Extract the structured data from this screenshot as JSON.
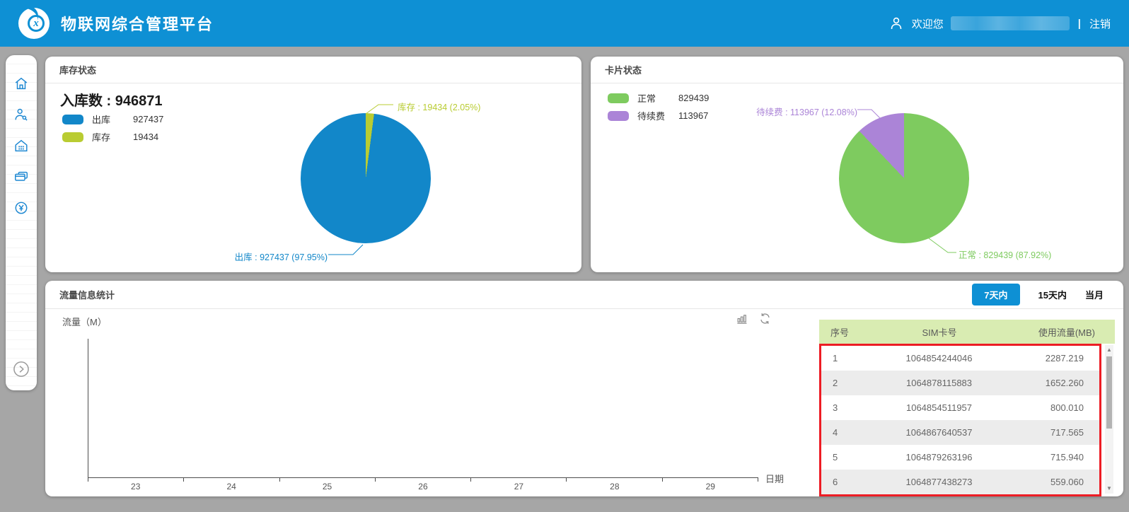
{
  "app": {
    "title": "物联网综合管理平台"
  },
  "topbar": {
    "welcome": "欢迎您",
    "divider": "|",
    "logout": "注销",
    "logo_glyph": "x"
  },
  "colors": {
    "accent": "#0e90d4",
    "sidebar_icon": "#1e88d2",
    "pie_out": "#1287c9",
    "pie_stock": "#b9cc32",
    "pie_normal": "#7ecb5f",
    "pie_renew": "#ab84d7",
    "table_header_bg": "#d9ecb2",
    "highlight_border": "#ed1c24"
  },
  "sidebar": {
    "icons": [
      "home-icon",
      "user-management-icon",
      "warehouse-icon",
      "card-management-icon",
      "billing-icon"
    ],
    "expand_icon": "chevron-right-icon"
  },
  "inventory": {
    "title": "库存状态",
    "total_label": "入库数 :",
    "total_value": "946871",
    "legend": [
      {
        "label": "出库",
        "value": "927437"
      },
      {
        "label": "库存",
        "value": "19434"
      }
    ],
    "callouts": {
      "stock": "库存 : 19434 (2.05%)",
      "out": "出库 : 927437 (97.95%)"
    }
  },
  "cards": {
    "title": "卡片状态",
    "legend": [
      {
        "label": "正常",
        "value": "829439"
      },
      {
        "label": "待续费",
        "value": "113967"
      }
    ],
    "callouts": {
      "renew": "待续费 : 113967 (12.08%)",
      "normal": "正常 : 829439 (87.92%)"
    }
  },
  "traffic": {
    "title": "流量信息统计",
    "tabs": [
      {
        "label": "7天内",
        "active": true
      },
      {
        "label": "15天内",
        "active": false
      },
      {
        "label": "当月",
        "active": false
      }
    ],
    "ylabel": "流量（M）",
    "xlabel": "日期",
    "xticks": [
      "23",
      "24",
      "25",
      "26",
      "27",
      "28",
      "29"
    ],
    "tool_icons": [
      "bar-chart-icon",
      "refresh-icon"
    ],
    "table": {
      "headers": [
        "序号",
        "SIM卡号",
        "使用流量(MB)"
      ],
      "rows": [
        [
          "1",
          "1064854244046",
          "2287.219"
        ],
        [
          "2",
          "1064878115883",
          "1652.260"
        ],
        [
          "3",
          "1064854511957",
          "800.010"
        ],
        [
          "4",
          "1064867640537",
          "717.565"
        ],
        [
          "5",
          "1064879263196",
          "715.940"
        ],
        [
          "6",
          "1064877438273",
          "559.060"
        ]
      ]
    }
  },
  "chart_data": [
    {
      "type": "pie",
      "title": "库存状态",
      "total_label": "入库数",
      "total_value": 946871,
      "series": [
        {
          "name": "出库",
          "value": 927437,
          "percent": "97.95%",
          "color": "#1287c9"
        },
        {
          "name": "库存",
          "value": 19434,
          "percent": "2.05%",
          "color": "#b9cc32"
        }
      ],
      "legend_position": "top-left"
    },
    {
      "type": "pie",
      "title": "卡片状态",
      "series": [
        {
          "name": "正常",
          "value": 829439,
          "percent": "87.92%",
          "color": "#7ecb5f"
        },
        {
          "name": "待续费",
          "value": 113967,
          "percent": "12.08%",
          "color": "#ab84d7"
        }
      ],
      "legend_position": "top-left"
    },
    {
      "type": "line",
      "title": "流量信息统计",
      "xlabel": "日期",
      "ylabel": "流量（M）",
      "x": [
        "23",
        "24",
        "25",
        "26",
        "27",
        "28",
        "29"
      ],
      "series": [],
      "note": "axes shown with no plotted data"
    }
  ]
}
